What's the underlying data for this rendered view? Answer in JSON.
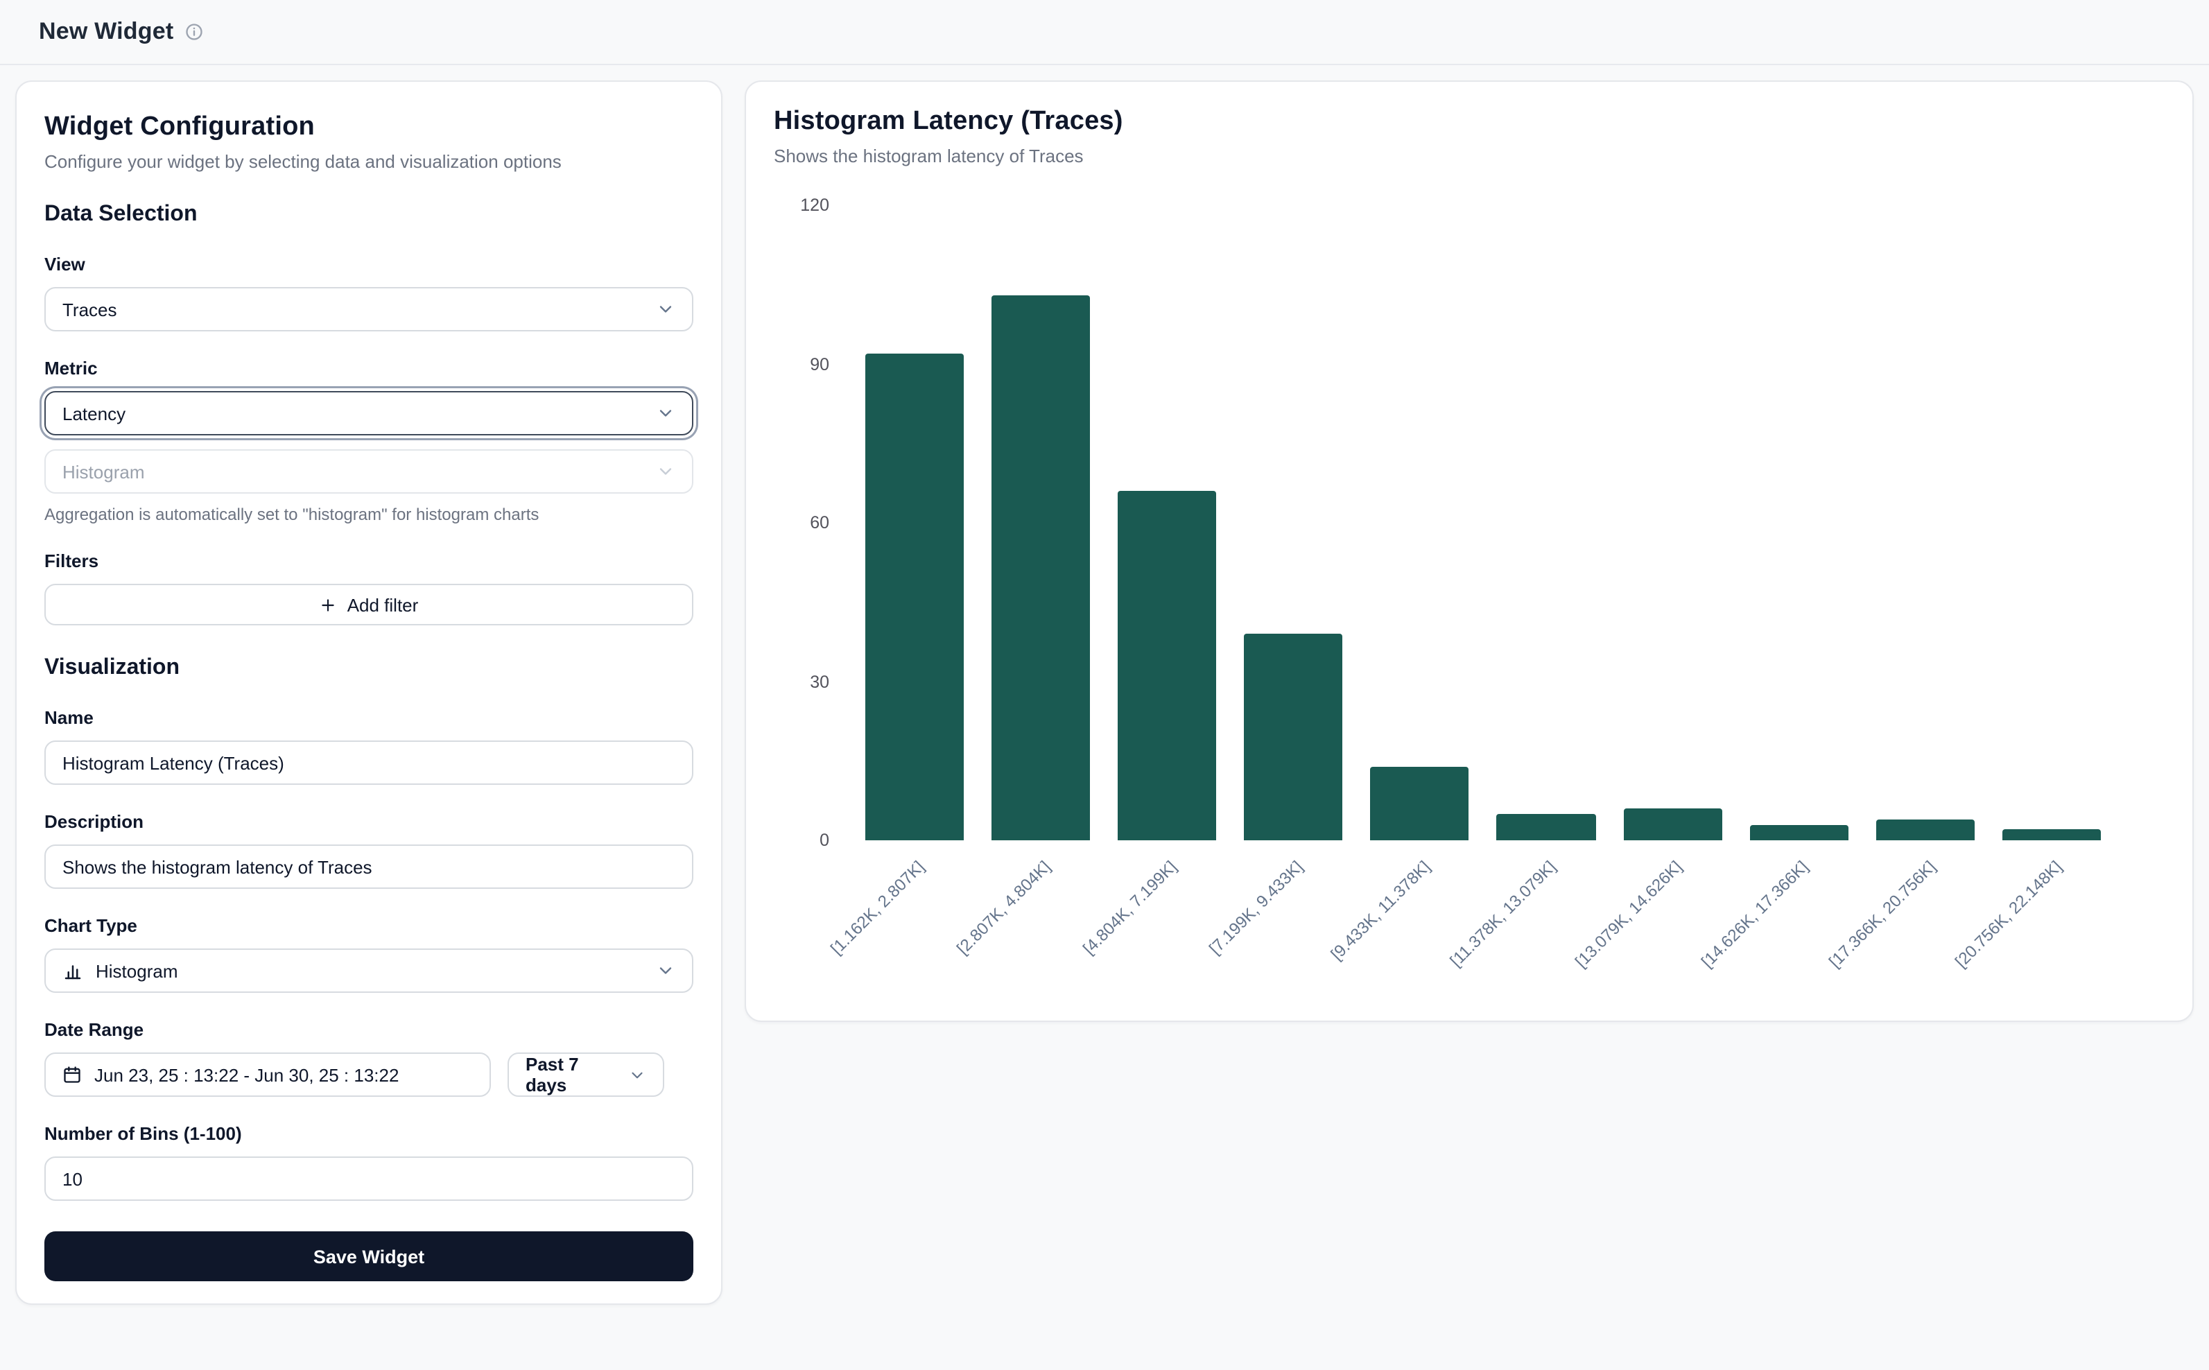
{
  "header": {
    "title": "New Widget"
  },
  "config": {
    "title": "Widget Configuration",
    "subtitle": "Configure your widget by selecting data and visualization options",
    "data_selection": {
      "heading": "Data Selection",
      "view_label": "View",
      "view_value": "Traces",
      "metric_label": "Metric",
      "metric_value": "Latency",
      "aggregation_value": "Histogram",
      "aggregation_help": "Aggregation is automatically set to \"histogram\" for histogram charts",
      "filters_label": "Filters",
      "add_filter_label": "Add filter"
    },
    "visualization": {
      "heading": "Visualization",
      "name_label": "Name",
      "name_value": "Histogram Latency (Traces)",
      "description_label": "Description",
      "description_value": "Shows the histogram latency of Traces",
      "chart_type_label": "Chart Type",
      "chart_type_value": "Histogram",
      "date_range_label": "Date Range",
      "date_range_value": "Jun 23, 25 : 13:22 - Jun 30, 25 : 13:22",
      "date_preset_value": "Past 7 days",
      "bins_label": "Number of Bins (1-100)",
      "bins_value": "10"
    },
    "save_label": "Save Widget"
  },
  "preview": {
    "title": "Histogram Latency (Traces)",
    "subtitle": "Shows the histogram latency of Traces"
  },
  "chart_data": {
    "type": "bar",
    "title": "Histogram Latency (Traces)",
    "subtitle": "Shows the histogram latency of Traces",
    "categories": [
      "[1.162K, 2.807K]",
      "[2.807K, 4.804K]",
      "[4.804K, 7.199K]",
      "[7.199K, 9.433K]",
      "[9.433K, 11.378K]",
      "[11.378K, 13.079K]",
      "[13.079K, 14.626K]",
      "[14.626K, 17.366K]",
      "[17.366K, 20.756K]",
      "[20.756K, 22.148K]"
    ],
    "values": [
      92,
      103,
      66,
      39,
      14,
      5,
      6,
      3,
      4,
      2
    ],
    "xlabel": "",
    "ylabel": "",
    "ylim": [
      0,
      120
    ],
    "yticks": [
      0,
      30,
      60,
      90,
      120
    ],
    "grid": false,
    "legend": false,
    "bar_color": "#1a5a52",
    "x_tick_rotation_deg": -45
  },
  "colors": {
    "bar": "#1a5a52",
    "save_button": "#0f172a",
    "page_background": "#f8f9fa",
    "card_border": "#e5e7eb"
  }
}
